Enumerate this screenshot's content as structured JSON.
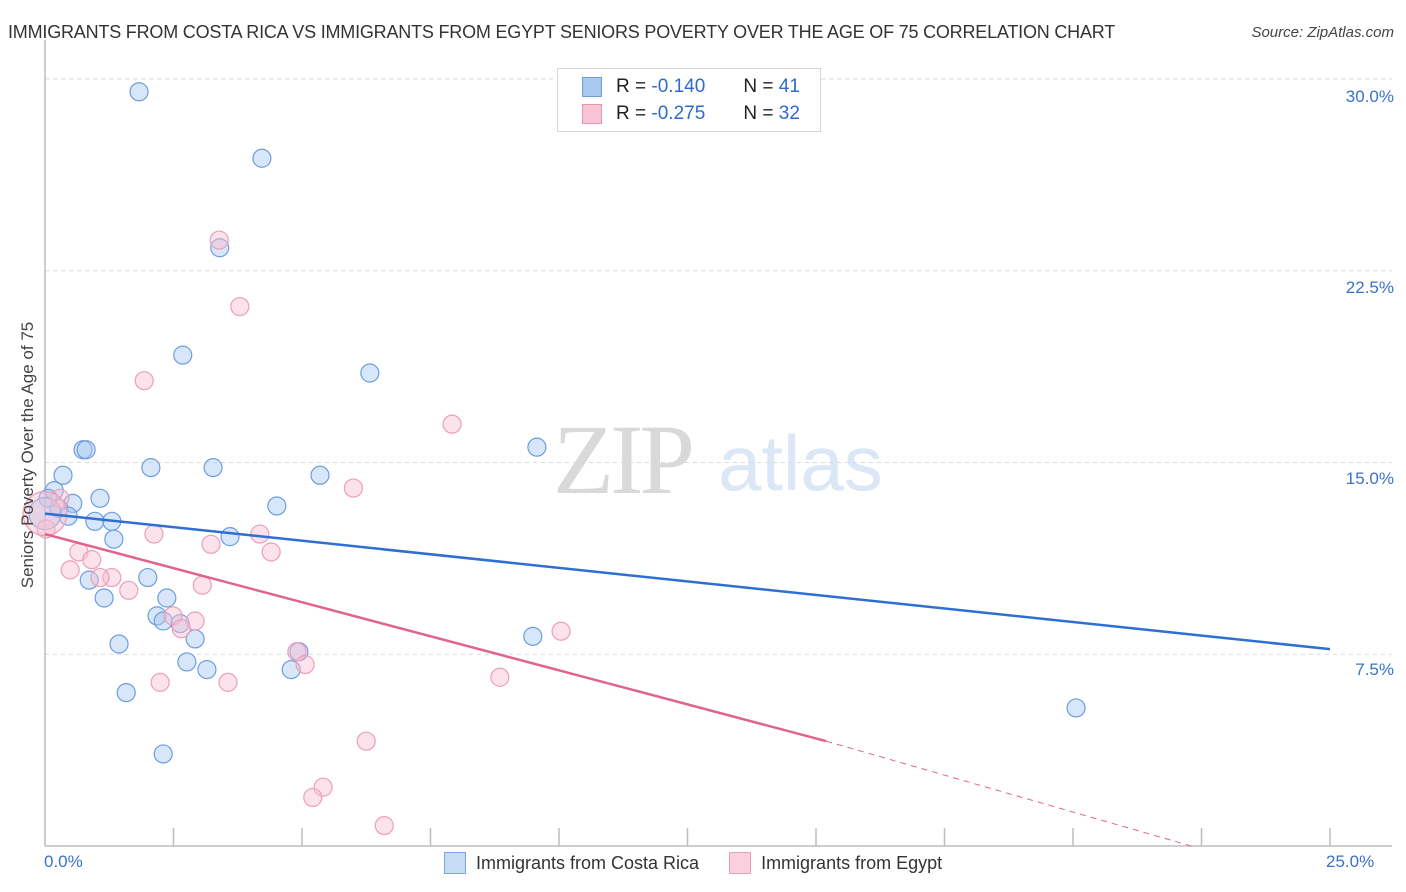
{
  "header": {
    "title": "IMMIGRANTS FROM COSTA RICA VS IMMIGRANTS FROM EGYPT SENIORS POVERTY OVER THE AGE OF 75 CORRELATION CHART",
    "source": "Source: ZipAtlas.com"
  },
  "watermark": {
    "zip": "ZIP",
    "atlas": "atlas"
  },
  "legend_top": {
    "rows": [
      {
        "r_label": "R =",
        "r_value": "-0.140",
        "n_label": "N =",
        "n_value": "41",
        "color": "#a9c8f0",
        "border": "#6f9ee0"
      },
      {
        "r_label": "R =",
        "r_value": "-0.275",
        "n_label": "N =",
        "n_value": "32",
        "color": "#f8c3d3",
        "border": "#e897b0"
      }
    ]
  },
  "legend_bottom": {
    "items": [
      {
        "label": "Immigrants from Costa Rica",
        "color": "#c6dbf6",
        "border": "#7aa6e3"
      },
      {
        "label": "Immigrants from Egypt",
        "color": "#fbd0de",
        "border": "#eca1b9"
      }
    ]
  },
  "axes": {
    "y_label": "Seniors Poverty Over the Age of 75",
    "y_ticks": [
      "30.0%",
      "22.5%",
      "15.0%",
      "7.5%"
    ],
    "x_ticks": [
      "0.0%",
      "25.0%"
    ]
  },
  "chart_data": {
    "type": "scatter",
    "title": "Immigrants from Costa Rica vs Immigrants from Egypt Seniors Poverty Over the Age of 75 Correlation Chart",
    "xlabel": "",
    "ylabel": "Seniors Poverty Over the Age of 75",
    "xlim": [
      0,
      25
    ],
    "ylim": [
      0,
      30
    ],
    "x_tick_labels": [
      "0.0%",
      "25.0%"
    ],
    "y_tick_labels": [
      "7.5%",
      "15.0%",
      "22.5%",
      "30.0%"
    ],
    "grid": "horizontal dashed",
    "legend_position": "top-center and bottom",
    "series": [
      {
        "name": "Immigrants from Costa Rica",
        "color": "#2f6fd1",
        "R": -0.14,
        "N": 41,
        "trendline": {
          "x": [
            0,
            25
          ],
          "y": [
            13.0,
            7.7
          ]
        },
        "points": [
          [
            1.83,
            29.5
          ],
          [
            4.22,
            26.9
          ],
          [
            3.4,
            23.4
          ],
          [
            2.68,
            19.2
          ],
          [
            6.32,
            18.5
          ],
          [
            9.57,
            15.6
          ],
          [
            0.74,
            15.5
          ],
          [
            0.8,
            15.5
          ],
          [
            0.35,
            14.5
          ],
          [
            2.06,
            14.8
          ],
          [
            3.27,
            14.8
          ],
          [
            5.35,
            14.5
          ],
          [
            0.18,
            13.9
          ],
          [
            1.07,
            13.6
          ],
          [
            0.54,
            13.4
          ],
          [
            4.51,
            13.3
          ],
          [
            0.27,
            13.2
          ],
          [
            0.45,
            12.9
          ],
          [
            0.97,
            12.7
          ],
          [
            1.3,
            12.7
          ],
          [
            1.34,
            12.0
          ],
          [
            3.6,
            12.1
          ],
          [
            0.86,
            10.4
          ],
          [
            2.0,
            10.5
          ],
          [
            2.37,
            9.7
          ],
          [
            1.15,
            9.7
          ],
          [
            2.18,
            9.0
          ],
          [
            2.3,
            8.8
          ],
          [
            2.63,
            8.7
          ],
          [
            1.44,
            7.9
          ],
          [
            2.92,
            8.1
          ],
          [
            9.49,
            8.2
          ],
          [
            2.76,
            7.2
          ],
          [
            4.79,
            6.9
          ],
          [
            3.15,
            6.9
          ],
          [
            1.58,
            6.0
          ],
          [
            4.94,
            7.6
          ],
          [
            20.06,
            5.4
          ],
          [
            2.3,
            3.6
          ],
          [
            0.06,
            13.6
          ],
          [
            0.0,
            13.0
          ]
        ]
      },
      {
        "name": "Immigrants from Egypt",
        "color": "#e0648e",
        "R": -0.275,
        "N": 32,
        "trendline": {
          "x": [
            0,
            15.2
          ],
          "y": [
            12.2,
            4.1
          ],
          "dashed_extension": {
            "x": [
              15.2,
              22.3
            ],
            "y": [
              4.1,
              0.0
            ]
          }
        },
        "points": [
          [
            3.39,
            23.7
          ],
          [
            3.79,
            21.1
          ],
          [
            1.93,
            18.2
          ],
          [
            7.92,
            16.5
          ],
          [
            6.0,
            14.0
          ],
          [
            0.29,
            13.6
          ],
          [
            2.12,
            12.2
          ],
          [
            4.18,
            12.2
          ],
          [
            3.23,
            11.8
          ],
          [
            0.02,
            12.4
          ],
          [
            0.66,
            11.5
          ],
          [
            4.4,
            11.5
          ],
          [
            0.91,
            11.2
          ],
          [
            0.49,
            10.8
          ],
          [
            1.3,
            10.5
          ],
          [
            1.07,
            10.5
          ],
          [
            1.63,
            10.0
          ],
          [
            3.06,
            10.2
          ],
          [
            2.49,
            9.0
          ],
          [
            2.92,
            8.8
          ],
          [
            2.65,
            8.5
          ],
          [
            10.04,
            8.4
          ],
          [
            4.9,
            7.6
          ],
          [
            5.06,
            7.1
          ],
          [
            8.85,
            6.6
          ],
          [
            2.24,
            6.4
          ],
          [
            3.56,
            6.4
          ],
          [
            6.25,
            4.1
          ],
          [
            5.41,
            2.3
          ],
          [
            5.21,
            1.9
          ],
          [
            6.6,
            0.8
          ],
          [
            0.0,
            13.0
          ]
        ]
      }
    ]
  }
}
